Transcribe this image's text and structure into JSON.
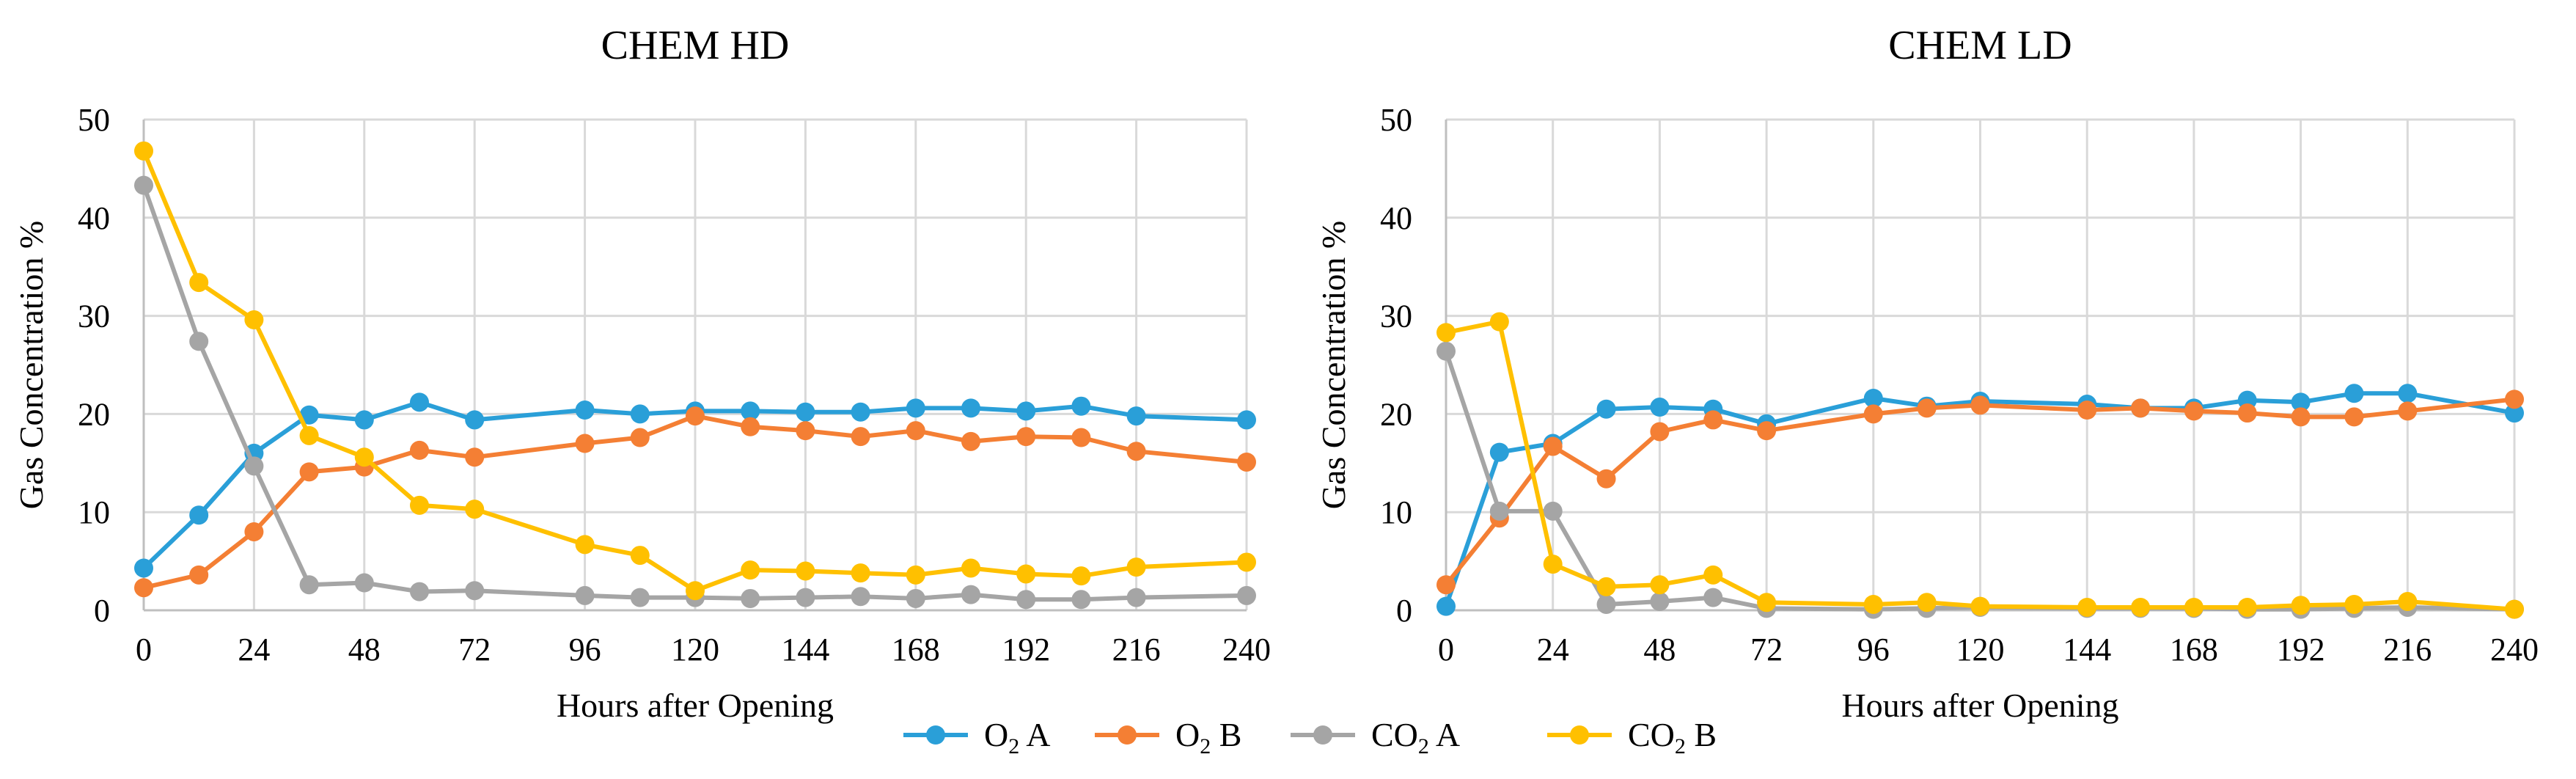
{
  "colors": {
    "o2a": "#2a9fd8",
    "o2b": "#f47f34",
    "co2a": "#a5a5a5",
    "co2b": "#ffc000",
    "grid": "#d9d9d9"
  },
  "legend": [
    {
      "key": "o2a",
      "main": "O",
      "sub": "2",
      "suffix": " A"
    },
    {
      "key": "o2b",
      "main": "O",
      "sub": "2",
      "suffix": " B"
    },
    {
      "key": "co2a",
      "main": "CO",
      "sub": "2",
      "suffix": " A"
    },
    {
      "key": "co2b",
      "main": "CO",
      "sub": "2",
      "suffix": " B"
    }
  ],
  "chart_data": [
    {
      "type": "line",
      "title": "CHEM HD",
      "xlabel": "Hours after Opening",
      "ylabel": "Gas Concentration %",
      "xlim": [
        0,
        240
      ],
      "ylim": [
        0,
        50
      ],
      "xticks": [
        0,
        24,
        48,
        72,
        96,
        120,
        144,
        168,
        192,
        216,
        240
      ],
      "yticks": [
        0,
        10,
        20,
        30,
        40,
        50
      ],
      "grid": true,
      "legend_position": "bottom",
      "x": [
        0,
        12,
        24,
        36,
        48,
        60,
        72,
        96,
        108,
        120,
        132,
        144,
        156,
        168,
        180,
        192,
        204,
        216,
        240
      ],
      "series": [
        {
          "key": "o2a",
          "values": [
            4.3,
            9.7,
            16.0,
            19.9,
            19.4,
            21.2,
            19.4,
            20.4,
            20.0,
            20.3,
            20.3,
            20.2,
            20.2,
            20.6,
            20.6,
            20.3,
            20.8,
            19.8,
            19.4
          ]
        },
        {
          "key": "o2b",
          "values": [
            2.3,
            3.6,
            8.0,
            14.1,
            14.6,
            16.3,
            15.6,
            17.0,
            17.6,
            19.8,
            18.7,
            18.3,
            17.7,
            18.3,
            17.2,
            17.7,
            17.6,
            16.2,
            15.1
          ]
        },
        {
          "key": "co2a",
          "values": [
            43.3,
            27.4,
            14.7,
            2.6,
            2.8,
            1.9,
            2.0,
            1.5,
            1.3,
            1.3,
            1.2,
            1.3,
            1.4,
            1.2,
            1.6,
            1.1,
            1.1,
            1.3,
            1.5
          ]
        },
        {
          "key": "co2b",
          "values": [
            46.8,
            33.4,
            29.6,
            17.8,
            15.6,
            10.7,
            10.3,
            6.7,
            5.6,
            2.0,
            4.1,
            4.0,
            3.8,
            3.6,
            4.3,
            3.7,
            3.5,
            4.4,
            4.9
          ]
        }
      ]
    },
    {
      "type": "line",
      "title": "CHEM LD",
      "xlabel": "Hours after Opening",
      "ylabel": "Gas Concentration %",
      "xlim": [
        0,
        240
      ],
      "ylim": [
        0,
        50
      ],
      "xticks": [
        0,
        24,
        48,
        72,
        96,
        120,
        144,
        168,
        192,
        216,
        240
      ],
      "yticks": [
        0,
        10,
        20,
        30,
        40,
        50
      ],
      "grid": true,
      "legend_position": "bottom",
      "x": [
        0,
        12,
        24,
        36,
        48,
        60,
        72,
        96,
        108,
        120,
        144,
        156,
        168,
        180,
        192,
        204,
        216,
        240
      ],
      "series": [
        {
          "key": "o2a",
          "values": [
            0.4,
            16.1,
            17.0,
            20.5,
            20.7,
            20.5,
            19.0,
            21.6,
            20.8,
            21.3,
            21.0,
            20.6,
            20.6,
            21.4,
            21.2,
            22.1,
            22.1,
            20.1
          ]
        },
        {
          "key": "o2b",
          "values": [
            2.6,
            9.4,
            16.7,
            13.4,
            18.2,
            19.4,
            18.3,
            20.0,
            20.6,
            20.9,
            20.4,
            20.6,
            20.3,
            20.1,
            19.7,
            19.7,
            20.3,
            21.5
          ]
        },
        {
          "key": "co2a",
          "values": [
            26.4,
            10.1,
            10.1,
            0.6,
            0.9,
            1.3,
            0.2,
            0.1,
            0.2,
            0.3,
            0.2,
            0.2,
            0.2,
            0.1,
            0.1,
            0.2,
            0.3,
            0.1
          ]
        },
        {
          "key": "co2b",
          "values": [
            28.3,
            29.4,
            4.7,
            2.4,
            2.6,
            3.6,
            0.8,
            0.6,
            0.8,
            0.4,
            0.3,
            0.3,
            0.3,
            0.3,
            0.5,
            0.6,
            0.9,
            0.1
          ]
        }
      ]
    }
  ]
}
